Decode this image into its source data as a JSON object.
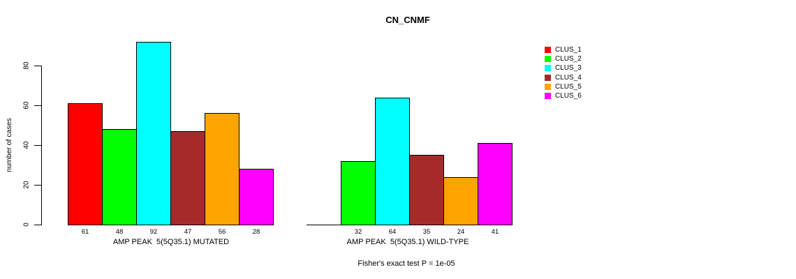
{
  "chart_data": {
    "type": "bar",
    "title": "CN_CNMF",
    "ylabel": "number of cases",
    "yticks": [
      0,
      20,
      40,
      60,
      80
    ],
    "ylim": [
      0,
      92
    ],
    "grid": false,
    "legend_position": "right-top",
    "bar_border_color": "#000000",
    "clusters": [
      {
        "name": "CLUS_1",
        "color": "#ff0000"
      },
      {
        "name": "CLUS_2",
        "color": "#00ff00"
      },
      {
        "name": "CLUS_3",
        "color": "#00ffff"
      },
      {
        "name": "CLUS_4",
        "color": "#a52a2a"
      },
      {
        "name": "CLUS_5",
        "color": "#ffa500"
      },
      {
        "name": "CLUS_6",
        "color": "#ff00ff"
      }
    ],
    "groups": [
      {
        "id": "mutated",
        "label": "AMP PEAK  5(5Q35.1) MUTATED",
        "values": [
          61,
          48,
          92,
          47,
          56,
          28
        ]
      },
      {
        "id": "wild-type",
        "label": "AMP PEAK  5(5Q35.1) WILD-TYPE",
        "values": [
          0,
          32,
          64,
          35,
          24,
          41
        ]
      }
    ],
    "footnote": "Fisher's exact test P = 1e-05"
  }
}
